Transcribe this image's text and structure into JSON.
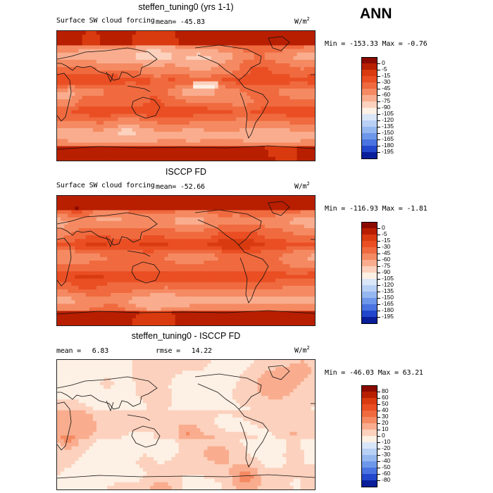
{
  "season": "ANN",
  "panels": [
    {
      "title": "steffen_tuning0 (yrs 1-1)",
      "left_label": "Surface SW cloud forcing",
      "mean_label": "mean=",
      "mean_value": "-45.83",
      "rmse_label": "",
      "rmse_value": "",
      "units": "W/m",
      "units_sup": "2",
      "min_label": "Min =",
      "min_value": "-153.33",
      "max_label": "Max =",
      "max_value": "-0.76",
      "palette": "forcing"
    },
    {
      "title": "ISCCP FD",
      "left_label": "Surface SW cloud forcing",
      "mean_label": "mean=",
      "mean_value": "-52.66",
      "rmse_label": "",
      "rmse_value": "",
      "units": "W/m",
      "units_sup": "2",
      "min_label": "Min =",
      "min_value": "-116.93",
      "max_label": "Max =",
      "max_value": "-1.81",
      "palette": "forcing"
    },
    {
      "title": "steffen_tuning0 - ISCCP FD",
      "left_label": "",
      "mean_label": "mean =",
      "mean_value": "6.83",
      "rmse_label": "rmse =",
      "rmse_value": "14.22",
      "units": "W/m",
      "units_sup": "2",
      "min_label": "Min =",
      "min_value": "-46.03",
      "max_label": "Max =",
      "max_value": "63.21",
      "palette": "diff"
    }
  ],
  "chart_data": {
    "type": "heatmap",
    "description_units": "W/m2",
    "projection": "global cylindrical equidistant, 0E to 360E, 90S to 90N",
    "colorbars": {
      "forcing": {
        "levels": [
          "0",
          "-5",
          "-15",
          "-30",
          "-45",
          "-60",
          "-75",
          "-90",
          "-105",
          "-120",
          "-135",
          "-150",
          "-165",
          "-180",
          "-195"
        ],
        "colors": [
          "#8b0a00",
          "#b81e00",
          "#d93a0f",
          "#ea4e23",
          "#f06a3f",
          "#f58a62",
          "#f9ad8e",
          "#fcd1bd",
          "#fdf0e4",
          "#d9e6f8",
          "#b9d0f5",
          "#95b7f0",
          "#6d97ea",
          "#4873e0",
          "#2247cc",
          "#0a1e9a"
        ]
      },
      "diff": {
        "levels": [
          "80",
          "60",
          "50",
          "40",
          "30",
          "20",
          "10",
          "0",
          "-10",
          "-20",
          "-30",
          "-40",
          "-50",
          "-60",
          "-80"
        ],
        "colors": [
          "#8b0a00",
          "#b81e00",
          "#d93a0f",
          "#ea4e23",
          "#f06a3f",
          "#f58a62",
          "#f9ad8e",
          "#fcd1bd",
          "#fdf0e4",
          "#d9e6f8",
          "#b9d0f5",
          "#95b7f0",
          "#6d97ea",
          "#4873e0",
          "#2247cc",
          "#0a1e9a"
        ]
      }
    },
    "fields": [
      {
        "name": "steffen_tuning0 (yrs 1-1)",
        "mean": -45.83,
        "min": -153.33,
        "max": -0.76
      },
      {
        "name": "ISCCP FD",
        "mean": -52.66,
        "min": -116.93,
        "max": -1.81
      },
      {
        "name": "steffen_tuning0 - ISCCP FD",
        "mean": 6.83,
        "rmse": 14.22,
        "min": -46.03,
        "max": 63.21
      }
    ]
  }
}
